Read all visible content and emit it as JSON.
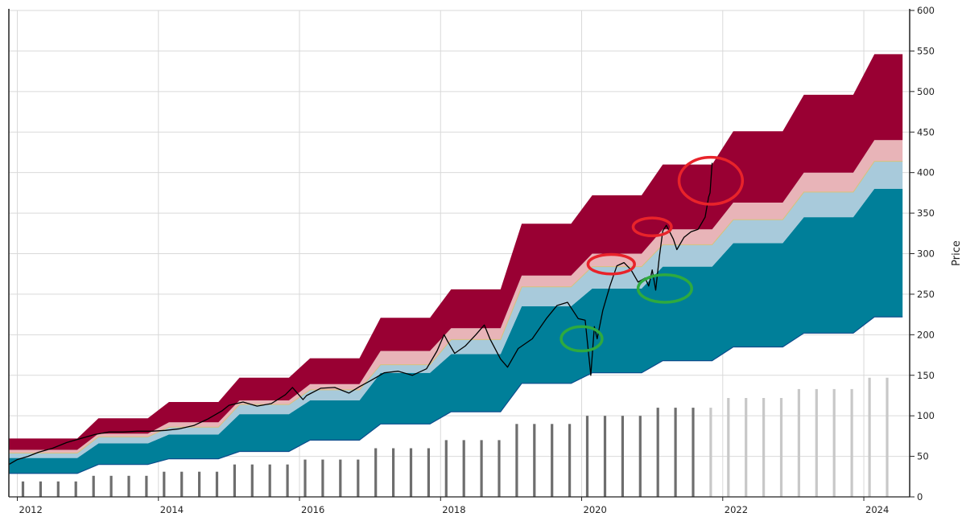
{
  "chart_data": {
    "type": "area",
    "ylabel": "Price",
    "xlim": [
      2011.88,
      2024.65
    ],
    "ylim": [
      0,
      600
    ],
    "x_ticks": [
      {
        "value": 2012,
        "label": "2012"
      },
      {
        "value": 2014,
        "label": "2014"
      },
      {
        "value": 2016,
        "label": "2016"
      },
      {
        "value": 2018,
        "label": "2018"
      },
      {
        "value": 2020,
        "label": "2020"
      },
      {
        "value": 2022,
        "label": "2022"
      },
      {
        "value": 2024,
        "label": "2024"
      }
    ],
    "y_ticks": [
      {
        "value": 0,
        "label": "0"
      },
      {
        "value": 50,
        "label": "50"
      },
      {
        "value": 100,
        "label": "100"
      },
      {
        "value": 150,
        "label": "150"
      },
      {
        "value": 200,
        "label": "200"
      },
      {
        "value": 250,
        "label": "250"
      },
      {
        "value": 300,
        "label": "300"
      },
      {
        "value": 350,
        "label": "350"
      },
      {
        "value": 400,
        "label": "400"
      },
      {
        "value": 450,
        "label": "450"
      },
      {
        "value": 500,
        "label": "500"
      },
      {
        "value": 550,
        "label": "550"
      },
      {
        "value": 600,
        "label": "600"
      }
    ],
    "grid": true,
    "y_axis_position": "right",
    "colors": {
      "top_band": "#990033",
      "upper_band": "#e8b4b8",
      "light_band": "#a8cadb",
      "main_band": "#007f99",
      "price_line": "#000000",
      "bar_actual": "#6e6e6e",
      "bar_estimate": "#c8c8c8",
      "circle_high": "#e8232a",
      "circle_low": "#2eaa3f"
    },
    "bands": {
      "x": [
        2011.88,
        2012.85,
        2013.15,
        2013.85,
        2014.15,
        2014.85,
        2015.15,
        2015.85,
        2016.15,
        2016.85,
        2017.15,
        2017.85,
        2018.15,
        2018.85,
        2019.15,
        2019.85,
        2020.15,
        2020.85,
        2021.15,
        2021.85,
        2022.15,
        2022.85,
        2023.15,
        2023.85,
        2024.15,
        2024.55
      ],
      "bottom": [
        29,
        29,
        40,
        40,
        47,
        47,
        56,
        56,
        70,
        70,
        90,
        90,
        105,
        105,
        140,
        140,
        153,
        153,
        168,
        168,
        185,
        185,
        202,
        202,
        222,
        222
      ],
      "main_top": [
        48,
        48,
        66,
        66,
        77,
        77,
        102,
        102,
        119,
        119,
        153,
        153,
        176,
        176,
        235,
        235,
        257,
        257,
        284,
        284,
        313,
        313,
        345,
        345,
        380,
        380
      ],
      "light_top": [
        54,
        54,
        74,
        74,
        86,
        86,
        114,
        114,
        132,
        132,
        163,
        163,
        194,
        194,
        259,
        259,
        284,
        284,
        311,
        311,
        342,
        342,
        376,
        376,
        414,
        414
      ],
      "upper_top": [
        58,
        58,
        78,
        78,
        92,
        92,
        119,
        119,
        139,
        139,
        180,
        180,
        208,
        208,
        273,
        273,
        300,
        300,
        330,
        330,
        363,
        363,
        400,
        400,
        440,
        440
      ],
      "top": [
        72,
        72,
        97,
        97,
        117,
        117,
        147,
        147,
        171,
        171,
        221,
        221,
        256,
        256,
        337,
        337,
        372,
        372,
        410,
        410,
        451,
        451,
        496,
        496,
        546,
        546
      ]
    },
    "price": {
      "x": [
        2011.88,
        2012.0,
        2012.15,
        2012.3,
        2012.5,
        2012.7,
        2012.9,
        2013.1,
        2013.3,
        2013.5,
        2013.7,
        2013.9,
        2014.1,
        2014.3,
        2014.5,
        2014.7,
        2014.9,
        2015.0,
        2015.2,
        2015.4,
        2015.6,
        2015.8,
        2015.9,
        2016.05,
        2016.1,
        2016.3,
        2016.5,
        2016.7,
        2016.85,
        2017.0,
        2017.2,
        2017.4,
        2017.6,
        2017.8,
        2017.95,
        2018.05,
        2018.1,
        2018.2,
        2018.35,
        2018.5,
        2018.62,
        2018.7,
        2018.85,
        2018.95,
        2019.1,
        2019.3,
        2019.5,
        2019.65,
        2019.8,
        2019.95,
        2020.05,
        2020.13,
        2020.18,
        2020.22,
        2020.3,
        2020.4,
        2020.5,
        2020.6,
        2020.7,
        2020.8,
        2020.9,
        2020.95,
        2021.0,
        2021.05,
        2021.1,
        2021.15,
        2021.2,
        2021.3,
        2021.35,
        2021.45,
        2021.55,
        2021.65,
        2021.75,
        2021.8,
        2021.82,
        2021.85
      ],
      "y": [
        40,
        46,
        50,
        55,
        60,
        67,
        72,
        77,
        80,
        80,
        81,
        81,
        82,
        84,
        88,
        96,
        106,
        113,
        117,
        112,
        115,
        126,
        135,
        120,
        125,
        134,
        135,
        128,
        136,
        143,
        153,
        155,
        150,
        158,
        180,
        200,
        192,
        177,
        186,
        200,
        212,
        195,
        170,
        160,
        183,
        195,
        220,
        236,
        240,
        220,
        218,
        150,
        210,
        195,
        230,
        260,
        285,
        289,
        280,
        265,
        270,
        260,
        280,
        255,
        295,
        328,
        335,
        318,
        305,
        320,
        327,
        330,
        345,
        370,
        375,
        412
      ]
    },
    "bars": {
      "x": [
        2012.08,
        2012.33,
        2012.58,
        2012.83,
        2013.08,
        2013.33,
        2013.58,
        2013.83,
        2014.08,
        2014.33,
        2014.58,
        2014.83,
        2015.08,
        2015.33,
        2015.58,
        2015.83,
        2016.08,
        2016.33,
        2016.58,
        2016.83,
        2017.08,
        2017.33,
        2017.58,
        2017.83,
        2018.08,
        2018.33,
        2018.58,
        2018.83,
        2019.08,
        2019.33,
        2019.58,
        2019.83,
        2020.08,
        2020.33,
        2020.58,
        2020.83,
        2021.08,
        2021.33,
        2021.58,
        2021.83,
        2022.08,
        2022.33,
        2022.58,
        2022.83,
        2023.08,
        2023.33,
        2023.58,
        2023.83,
        2024.08,
        2024.33
      ],
      "values": [
        19,
        19,
        19,
        19,
        26,
        26,
        26,
        26,
        31,
        31,
        31,
        31,
        40,
        40,
        40,
        40,
        46,
        46,
        46,
        46,
        60,
        60,
        60,
        60,
        70,
        70,
        70,
        70,
        90,
        90,
        90,
        90,
        100,
        100,
        100,
        100,
        110,
        110,
        110,
        110,
        122,
        122,
        122,
        122,
        133,
        133,
        133,
        133,
        147,
        147
      ],
      "estimate_from_index": 39
    },
    "annotations": [
      {
        "type": "ellipse",
        "color": "red",
        "cx": 2021.83,
        "cy": 390,
        "rx": 0.45,
        "ry": 29
      },
      {
        "type": "ellipse",
        "color": "red",
        "cx": 2021.0,
        "cy": 333,
        "rx": 0.27,
        "ry": 11
      },
      {
        "type": "ellipse",
        "color": "red",
        "cx": 2020.42,
        "cy": 287,
        "rx": 0.33,
        "ry": 12
      },
      {
        "type": "ellipse",
        "color": "green",
        "cx": 2021.18,
        "cy": 257,
        "rx": 0.38,
        "ry": 17
      },
      {
        "type": "ellipse",
        "color": "green",
        "cx": 2020.0,
        "cy": 195,
        "rx": 0.29,
        "ry": 15
      }
    ]
  }
}
